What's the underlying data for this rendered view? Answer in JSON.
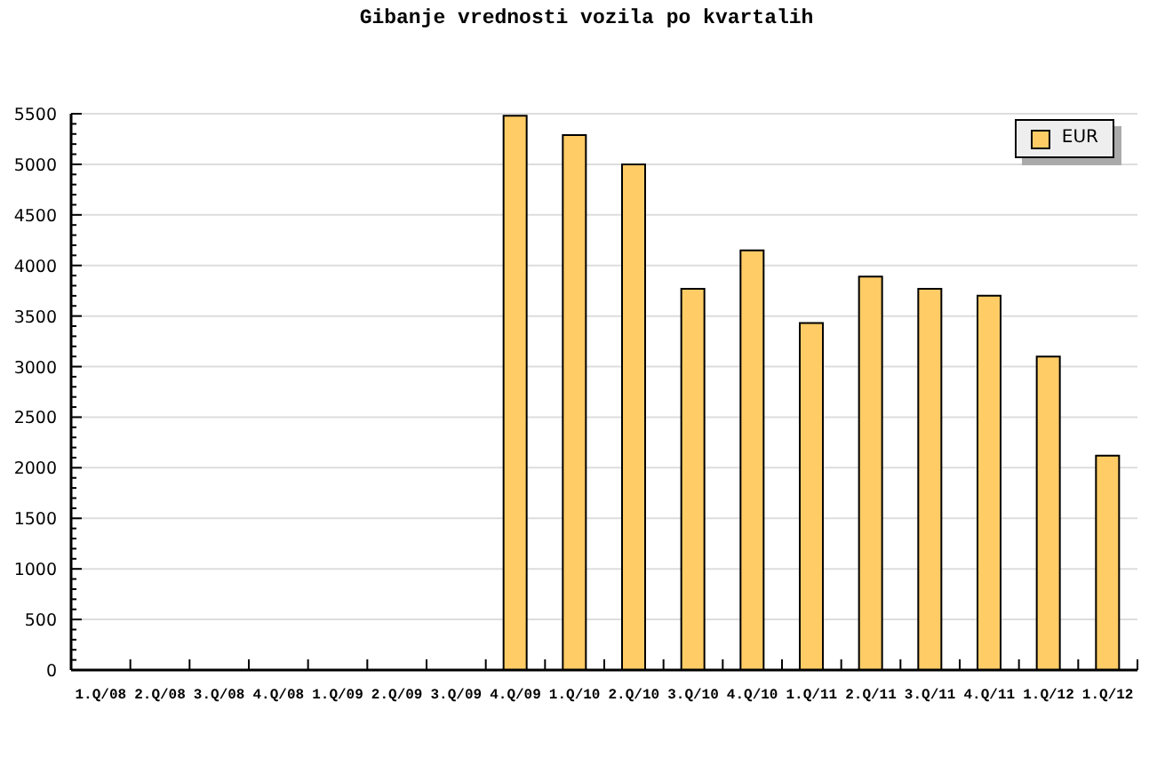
{
  "chart_data": {
    "type": "bar",
    "title": "Gibanje vrednosti vozila po kvartalih",
    "categories": [
      "1.Q/08",
      "2.Q/08",
      "3.Q/08",
      "4.Q/08",
      "1.Q/09",
      "2.Q/09",
      "3.Q/09",
      "4.Q/09",
      "1.Q/10",
      "2.Q/10",
      "3.Q/10",
      "4.Q/10",
      "1.Q/11",
      "2.Q/11",
      "3.Q/11",
      "4.Q/11",
      "1.Q/12",
      "1.Q/12"
    ],
    "series": [
      {
        "name": "EUR",
        "color": "#ffcc66",
        "values": [
          null,
          null,
          null,
          null,
          null,
          null,
          null,
          5480,
          5290,
          5000,
          3770,
          4150,
          3430,
          3890,
          3770,
          3700,
          3100,
          2120
        ]
      }
    ],
    "ylim": [
      0,
      5500
    ],
    "yticks": [
      0,
      {
        "value": 100,
        "label": null
      },
      {
        "value": 200,
        "label": null
      },
      {
        "value": 300,
        "label": null
      },
      {
        "value": 400,
        "label": null
      },
      500,
      {
        "value": 600,
        "label": null
      },
      {
        "value": 700,
        "label": null
      },
      {
        "value": 800,
        "label": null
      },
      {
        "value": 900,
        "label": null
      },
      1000,
      {
        "value": 1100,
        "label": null
      },
      {
        "value": 1200,
        "label": null
      },
      {
        "value": 1300,
        "label": null
      },
      {
        "value": 1400,
        "label": null
      },
      1500,
      {
        "value": 1600,
        "label": null
      },
      {
        "value": 1700,
        "label": null
      },
      {
        "value": 1800,
        "label": null
      },
      {
        "value": 1900,
        "label": null
      },
      2000,
      {
        "value": 2100,
        "label": null
      },
      {
        "value": 2200,
        "label": null
      },
      {
        "value": 2300,
        "label": null
      },
      {
        "value": 2400,
        "label": null
      },
      2500,
      {
        "value": 2600,
        "label": null
      },
      {
        "value": 2700,
        "label": null
      },
      {
        "value": 2800,
        "label": null
      },
      {
        "value": 2900,
        "label": null
      },
      3000,
      {
        "value": 3100,
        "label": null
      },
      {
        "value": 3200,
        "label": null
      },
      {
        "value": 3300,
        "label": null
      },
      {
        "value": 3400,
        "label": null
      },
      3500,
      {
        "value": 3600,
        "label": null
      },
      {
        "value": 3700,
        "label": null
      },
      {
        "value": 3800,
        "label": null
      },
      {
        "value": 3900,
        "label": null
      },
      4000,
      {
        "value": 4100,
        "label": null
      },
      {
        "value": 4200,
        "label": null
      },
      {
        "value": 4300,
        "label": null
      },
      {
        "value": 4400,
        "label": null
      },
      4500,
      {
        "value": 4600,
        "label": null
      },
      {
        "value": 4700,
        "label": null
      },
      {
        "value": 4800,
        "label": null
      },
      {
        "value": 4900,
        "label": null
      },
      5000,
      {
        "value": 5100,
        "label": null
      },
      {
        "value": 5200,
        "label": null
      },
      {
        "value": 5300,
        "label": null
      },
      {
        "value": 5400,
        "label": null
      },
      5500
    ],
    "grid": "y",
    "legend": "top right"
  }
}
